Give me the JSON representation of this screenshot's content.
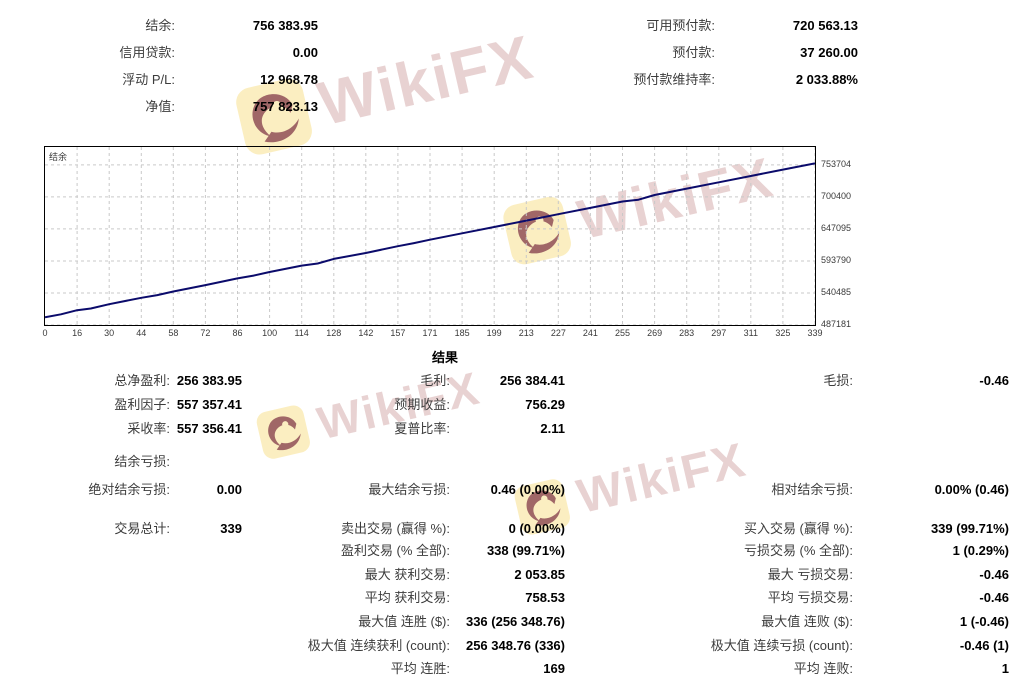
{
  "account_summary": {
    "left": [
      {
        "label": "结余:",
        "value": "756 383.95"
      },
      {
        "label": "信用贷款:",
        "value": "0.00"
      },
      {
        "label": "浮动 P/L:",
        "value": "12 968.78"
      },
      {
        "label": "净值:",
        "value": "757 823.13"
      }
    ],
    "right": [
      {
        "label": "可用预付款:",
        "value": "720 563.13"
      },
      {
        "label": "预付款:",
        "value": "37 260.00"
      },
      {
        "label": "预付款维持率:",
        "value": "2 033.88%"
      }
    ]
  },
  "chart": {
    "legend": "结余"
  },
  "chart_data": {
    "type": "line",
    "legend": "结余",
    "legend_position": "top-left",
    "grid": true,
    "line_color": "#0b0b6b",
    "x_ticks": [
      0,
      16,
      30,
      44,
      58,
      72,
      86,
      100,
      114,
      128,
      142,
      157,
      171,
      185,
      199,
      213,
      227,
      241,
      255,
      269,
      283,
      297,
      311,
      325,
      339
    ],
    "y_ticks": [
      753704,
      700400,
      647095,
      593790,
      540485,
      487181
    ],
    "xlim": [
      0,
      339
    ],
    "ylim": [
      487181,
      783500
    ],
    "series": [
      {
        "name": "结余",
        "x": [
          0,
          8,
          16,
          22,
          30,
          44,
          51,
          58,
          72,
          86,
          93,
          100,
          114,
          121,
          128,
          142,
          157,
          164,
          171,
          185,
          199,
          213,
          227,
          241,
          255,
          262,
          269,
          283,
          297,
          311,
          325,
          339
        ],
        "y": [
          500000,
          505000,
          511800,
          514600,
          521800,
          532400,
          537000,
          542900,
          553600,
          564800,
          569500,
          575400,
          586000,
          589500,
          597200,
          607000,
          618400,
          623500,
          629100,
          639900,
          650400,
          661000,
          671600,
          682100,
          692800,
          695800,
          703600,
          714200,
          724800,
          735300,
          745900,
          756384
        ]
      }
    ]
  },
  "results": {
    "header": "结果",
    "col_a": [
      {
        "label": "总净盈利:",
        "value": "256 383.95"
      },
      {
        "label": "盈利因子:",
        "value": "557 357.41"
      },
      {
        "label": "采收率:",
        "value": "557 356.41"
      },
      {
        "label": "结余亏损:",
        "value": ""
      },
      {
        "label": "绝对结余亏损:",
        "value": "0.00"
      },
      {
        "label": "交易总计:",
        "value": "339"
      }
    ],
    "col_b": [
      {
        "label": "毛利:",
        "value": "256 384.41"
      },
      {
        "label": "预期收益:",
        "value": "756.29"
      },
      {
        "label": "夏普比率:",
        "value": "2.11"
      },
      {
        "label": "最大结余亏损:",
        "value": "0.46 (0.00%)"
      },
      {
        "label": "卖出交易 (赢得 %):",
        "value": "0 (0.00%)"
      },
      {
        "label": "盈利交易 (% 全部):",
        "value": "338 (99.71%)"
      },
      {
        "label": "最大 获利交易:",
        "value": "2 053.85"
      },
      {
        "label": "平均 获利交易:",
        "value": "758.53"
      },
      {
        "label": "最大值 连胜 ($):",
        "value": "336 (256 348.76)"
      },
      {
        "label": "极大值 连续获利 (count):",
        "value": "256 348.76 (336)"
      },
      {
        "label": "平均 连胜:",
        "value": "169"
      }
    ],
    "col_c": [
      {
        "label": "毛损:",
        "value": "-0.46"
      },
      {
        "label": "相对结余亏损:",
        "value": "0.00% (0.46)"
      },
      {
        "label": "买入交易 (赢得 %):",
        "value": "339 (99.71%)"
      },
      {
        "label": "亏损交易 (% 全部):",
        "value": "1 (0.29%)"
      },
      {
        "label": "最大 亏损交易:",
        "value": "-0.46"
      },
      {
        "label": "平均 亏损交易:",
        "value": "-0.46"
      },
      {
        "label": "最大值 连败 ($):",
        "value": "1 (-0.46)"
      },
      {
        "label": "极大值 连续亏损 (count):",
        "value": "-0.46 (1)"
      },
      {
        "label": "平均 连败:",
        "value": "1"
      }
    ]
  },
  "watermark": {
    "text": "WikiFX"
  }
}
